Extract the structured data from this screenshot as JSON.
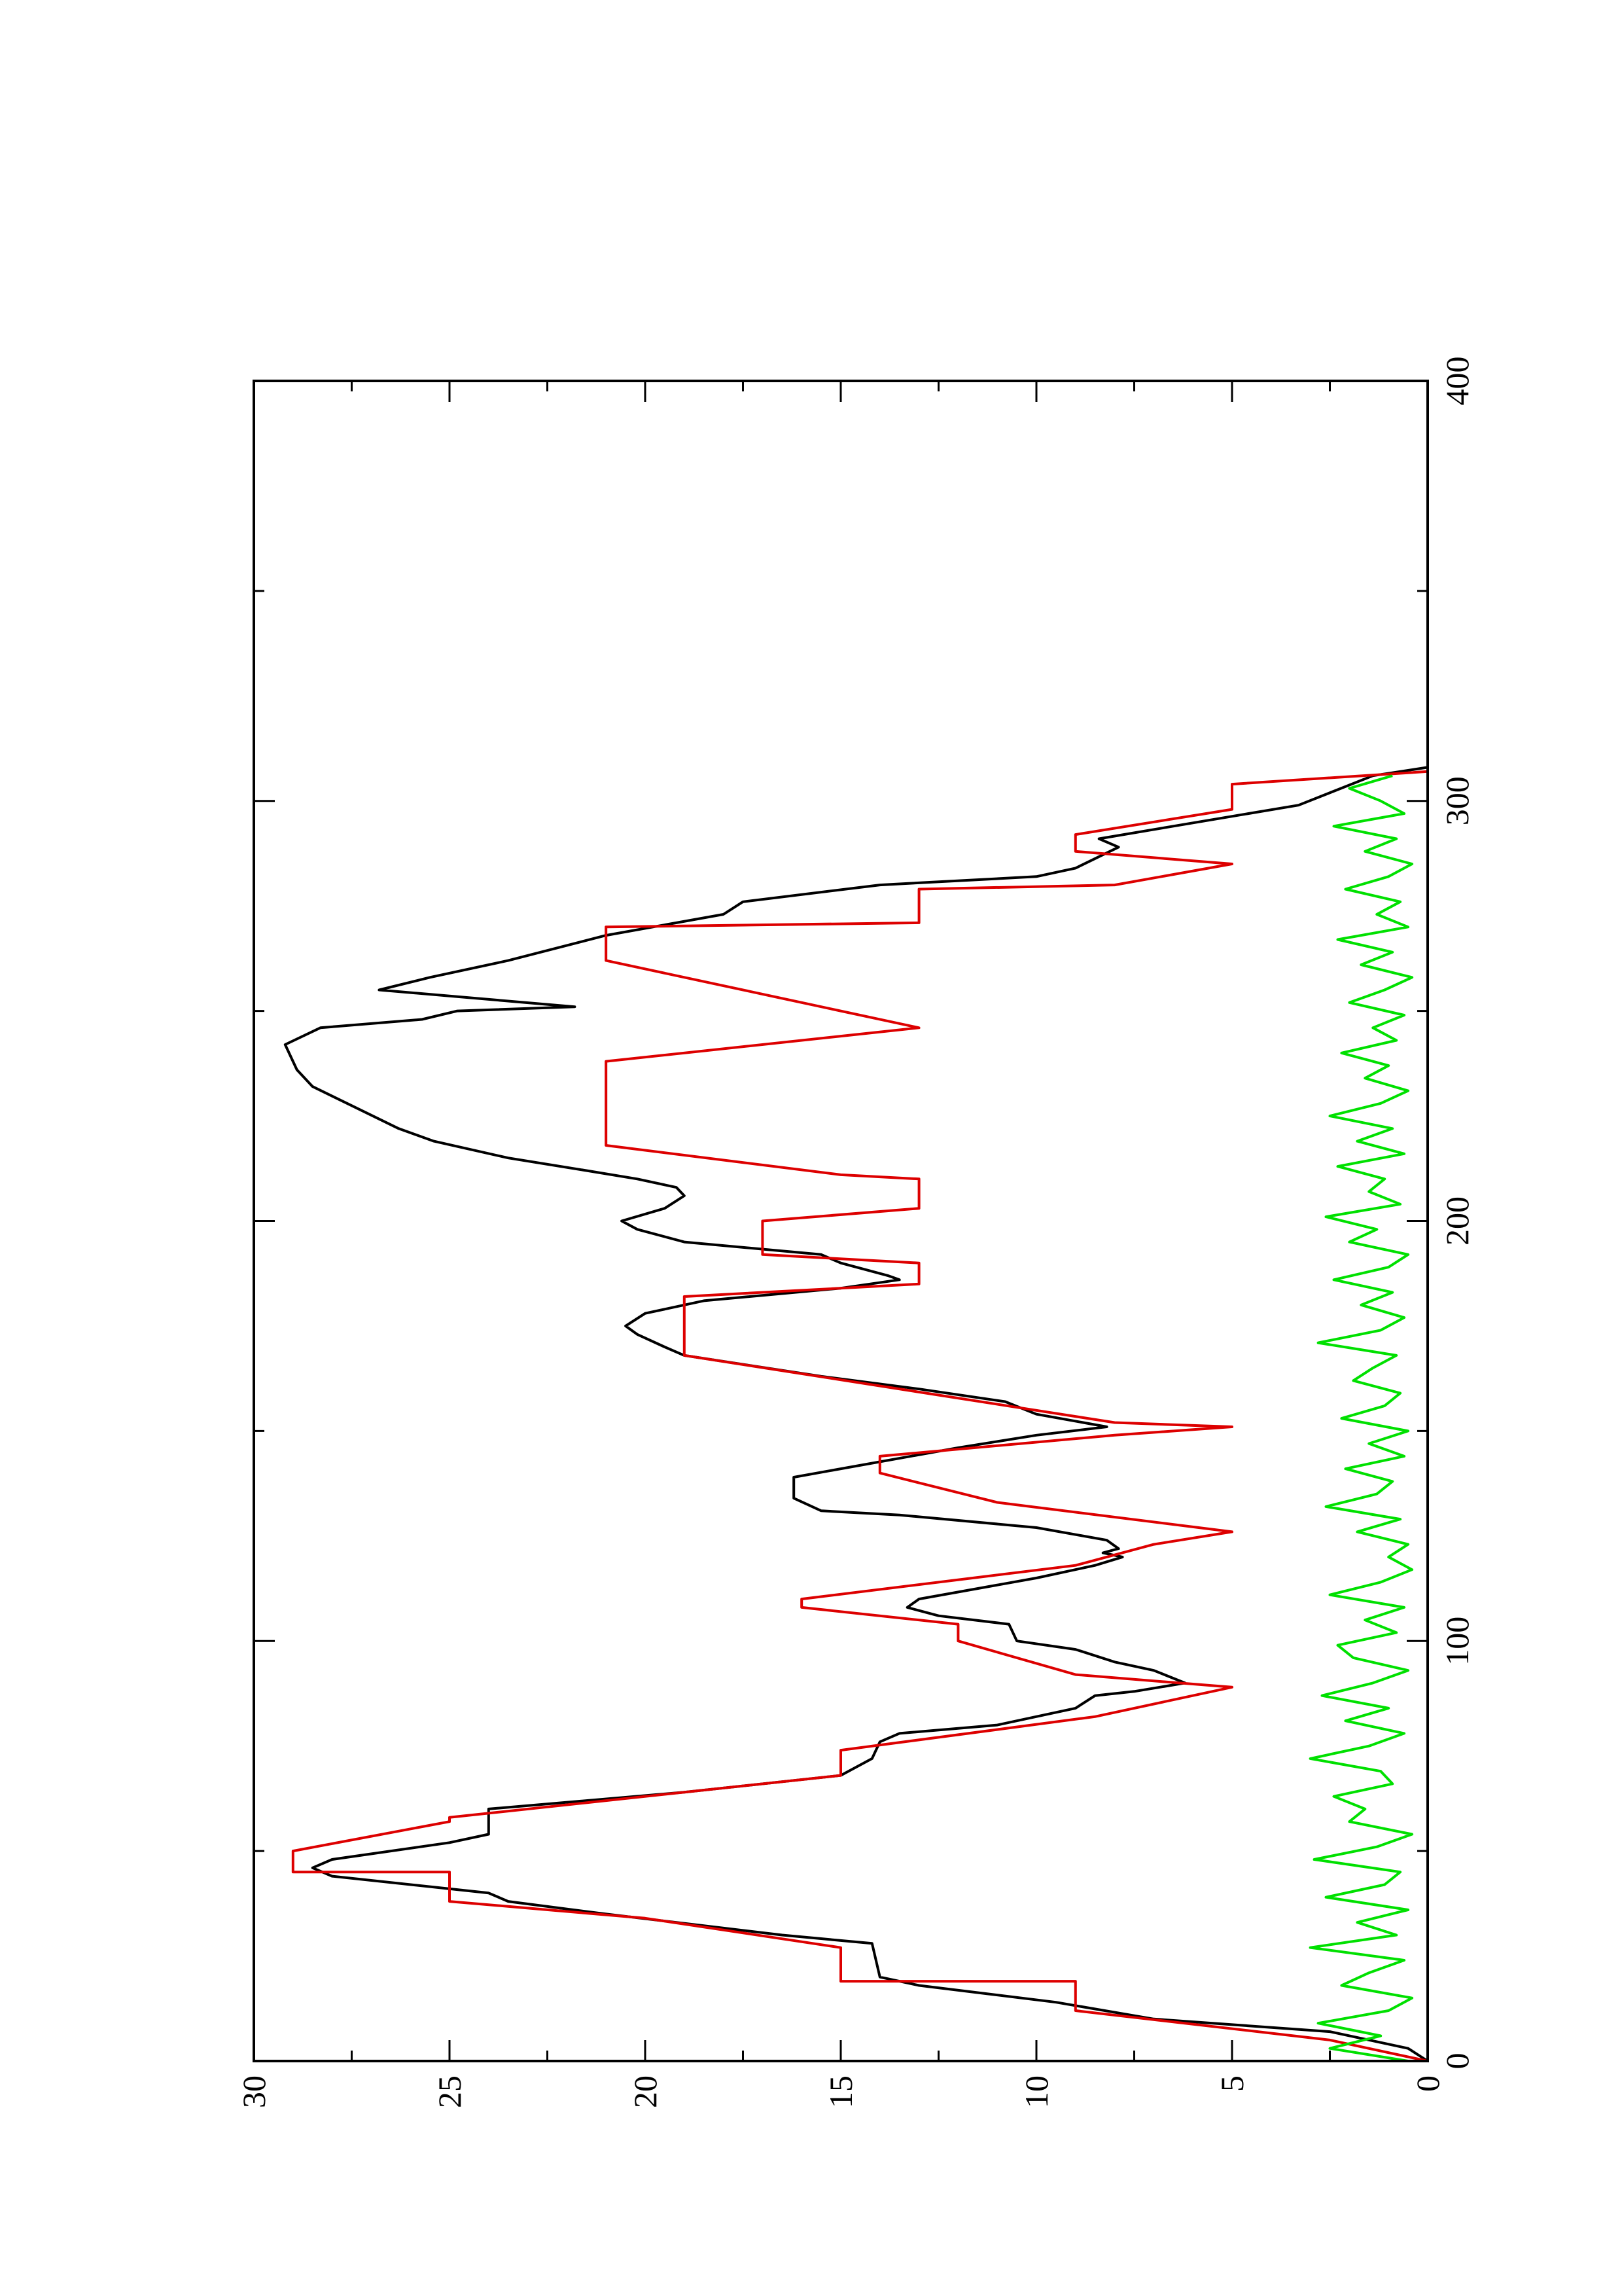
{
  "chart_data": {
    "type": "line",
    "xlim": [
      0,
      400
    ],
    "xticks": [
      0,
      100,
      200,
      300,
      400
    ],
    "xminor": [
      50,
      150,
      250,
      350
    ],
    "ylim": [
      0,
      30
    ],
    "yticks": [
      0,
      5,
      10,
      15,
      20,
      25,
      30
    ],
    "yminor": [
      2.5,
      7.5,
      12.5,
      17.5,
      22.5,
      27.5
    ],
    "rotation": -90,
    "series": [
      {
        "color": "#000000",
        "x": [
          0,
          3,
          7,
          10,
          14,
          18,
          20,
          28,
          30,
          35,
          38,
          40,
          44,
          46,
          48,
          52,
          54,
          60,
          64,
          68,
          72,
          76,
          78,
          80,
          84,
          87,
          88,
          90,
          93,
          95,
          98,
          100,
          104,
          106,
          108,
          110,
          115,
          118,
          120,
          121,
          122,
          124,
          127,
          130,
          131,
          134,
          139,
          141,
          146,
          149,
          151,
          154,
          157,
          160,
          163,
          168,
          170,
          173,
          175,
          178,
          181,
          184,
          186,
          187,
          190,
          192,
          195,
          198,
          200,
          203,
          206,
          208,
          210,
          212,
          215,
          219,
          222,
          227,
          232,
          236,
          242,
          246,
          248,
          250,
          251,
          255,
          258,
          262,
          268,
          273,
          276,
          280,
          282,
          284,
          289,
          291,
          294,
          299,
          306,
          308
        ],
        "values": [
          0,
          0.5,
          2.5,
          7,
          9.5,
          13,
          14,
          14.2,
          16.5,
          21,
          23.5,
          24,
          28,
          28.5,
          28,
          25,
          24,
          24,
          19,
          15,
          14.2,
          14,
          13.5,
          11,
          9,
          8.5,
          7.5,
          6.2,
          7,
          8,
          9,
          10.5,
          10.7,
          12.5,
          13.3,
          13,
          10,
          8.5,
          7.8,
          8.3,
          7.9,
          8.2,
          10,
          13.5,
          15.5,
          16.2,
          16.2,
          15,
          12,
          10,
          8.2,
          10,
          10.8,
          13,
          15.5,
          19,
          19.5,
          20.2,
          20.5,
          20,
          18.5,
          15,
          13.5,
          13.8,
          15,
          15.5,
          19,
          20.2,
          20.6,
          19.5,
          19,
          19.2,
          20.2,
          21.5,
          23.5,
          25.4,
          26.3,
          27.4,
          28.5,
          28.9,
          29.2,
          28.3,
          25.7,
          24.8,
          21.8,
          26.8,
          25.5,
          23.5,
          21,
          18,
          17.5,
          14,
          10,
          9,
          7.9,
          8.4,
          6.5,
          3.3,
          1.4,
          0
        ]
      },
      {
        "color": "#dd0000",
        "x": [
          0,
          5,
          12,
          19,
          19,
          27,
          34,
          38,
          45,
          45,
          50,
          57,
          58,
          68,
          74,
          82,
          89,
          92,
          100,
          104,
          108,
          110,
          118,
          123,
          126,
          133,
          140,
          144,
          149,
          151,
          152,
          168,
          182,
          185,
          190,
          192,
          200,
          203,
          210,
          211,
          218,
          238,
          244,
          246,
          262,
          270,
          271,
          279,
          280,
          285,
          288,
          292,
          298,
          304,
          307
        ],
        "values": [
          0,
          2.5,
          9,
          9,
          15,
          15,
          20,
          25,
          25,
          29,
          29,
          25,
          25,
          15,
          15,
          8.5,
          5,
          9,
          12,
          12,
          16,
          16,
          9,
          7,
          5,
          11,
          14,
          14,
          8,
          5,
          8,
          19,
          19,
          13,
          13,
          17,
          17,
          13,
          13,
          15,
          21,
          21,
          15,
          13,
          21,
          21,
          13,
          13,
          8,
          5,
          9,
          9,
          5,
          5,
          0
        ]
      },
      {
        "color": "#00e000",
        "x": [
          0,
          3,
          6,
          9,
          12,
          15,
          18,
          21,
          24,
          27,
          30,
          33,
          36,
          39,
          42,
          45,
          48,
          51,
          54,
          57,
          60,
          63,
          66,
          69,
          72,
          75,
          78,
          81,
          84,
          87,
          90,
          93,
          96,
          99,
          102,
          105,
          108,
          111,
          114,
          117,
          120,
          123,
          126,
          129,
          132,
          135,
          138,
          141,
          144,
          147,
          150,
          153,
          156,
          159,
          162,
          165,
          168,
          171,
          174,
          177,
          180,
          183,
          186,
          189,
          192,
          195,
          198,
          201,
          204,
          207,
          210,
          213,
          216,
          219,
          222,
          225,
          228,
          231,
          234,
          237,
          240,
          243,
          246,
          249,
          252,
          255,
          258,
          261,
          264,
          267,
          270,
          273,
          276,
          279,
          282,
          285,
          288,
          291,
          294,
          297,
          300,
          303,
          306
        ],
        "values": [
          0.5,
          2.5,
          1.2,
          2.8,
          1.0,
          0.4,
          2.2,
          1.5,
          0.6,
          3.0,
          0.8,
          1.8,
          0.5,
          2.6,
          1.1,
          0.7,
          2.9,
          1.3,
          0.4,
          2.0,
          1.6,
          2.4,
          0.9,
          1.2,
          3.0,
          1.5,
          0.6,
          2.1,
          1.0,
          2.7,
          1.4,
          0.5,
          1.9,
          2.3,
          0.8,
          1.6,
          0.6,
          2.5,
          1.2,
          0.4,
          1.0,
          0.5,
          1.8,
          0.7,
          2.6,
          1.3,
          0.9,
          2.1,
          0.6,
          1.5,
          0.5,
          2.2,
          1.1,
          0.7,
          1.9,
          1.4,
          0.8,
          2.8,
          1.2,
          0.6,
          1.7,
          0.9,
          2.4,
          1.0,
          0.5,
          2.0,
          1.3,
          2.6,
          0.7,
          1.5,
          1.1,
          2.3,
          0.6,
          1.8,
          0.9,
          2.5,
          1.2,
          0.5,
          1.6,
          1.0,
          2.2,
          0.8,
          1.4,
          0.6,
          2.0,
          1.1,
          0.4,
          1.7,
          0.9,
          2.3,
          0.5,
          1.3,
          0.7,
          2.1,
          1.0,
          0.4,
          1.6,
          0.8,
          2.4,
          0.6,
          1.2,
          2.0,
          0.9
        ]
      }
    ]
  }
}
